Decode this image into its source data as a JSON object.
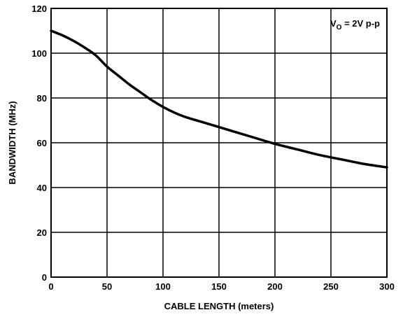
{
  "chart_data": {
    "type": "line",
    "xlabel": "CABLE LENGTH (meters)",
    "ylabel": "BANDWIDTH (MHz)",
    "xlim": [
      0,
      300
    ],
    "ylim": [
      0,
      120
    ],
    "x_ticks": [
      0,
      50,
      100,
      150,
      200,
      250,
      300
    ],
    "y_ticks": [
      0,
      20,
      40,
      60,
      80,
      100,
      120
    ],
    "x_tick_labels": [
      "0",
      "50",
      "100",
      "150",
      "200",
      "250",
      "300"
    ],
    "y_tick_labels": [
      "0",
      "20",
      "40",
      "60",
      "80",
      "100",
      "120"
    ],
    "grid": true,
    "annotation": {
      "main": "V",
      "sub": "O",
      "rest": " = 2V p-p"
    },
    "series": [
      {
        "x": [
          0,
          10,
          20,
          30,
          40,
          50,
          60,
          70,
          80,
          90,
          100,
          110,
          120,
          140,
          160,
          180,
          200,
          220,
          240,
          260,
          280,
          300
        ],
        "y": [
          110,
          108,
          105.5,
          102.5,
          99,
          94,
          90,
          86,
          82.5,
          79,
          76,
          73.5,
          71.5,
          68.5,
          65.5,
          62.5,
          59.5,
          57,
          54.5,
          52.5,
          50.5,
          49
        ]
      }
    ]
  }
}
